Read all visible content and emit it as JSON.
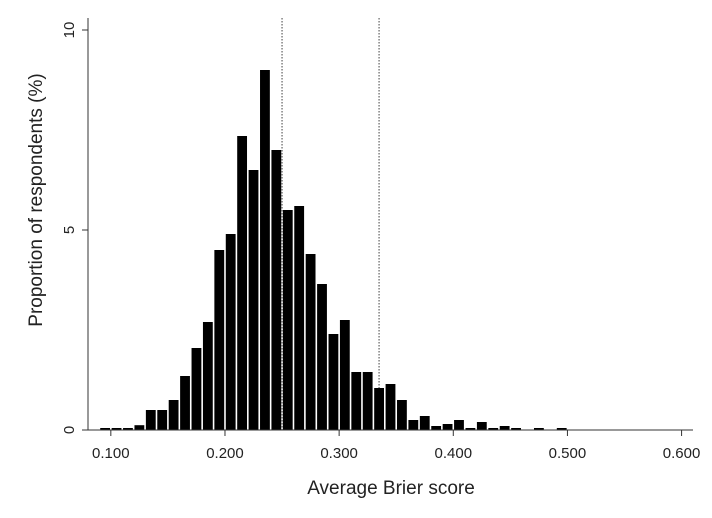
{
  "chart_data": {
    "type": "bar",
    "title": "",
    "xlabel": "Average Brier score",
    "ylabel": "Proportion of respondents (%)",
    "xlim": [
      0.08,
      0.61
    ],
    "ylim": [
      0,
      10
    ],
    "x_ticks": [
      0.1,
      0.2,
      0.3,
      0.4,
      0.5,
      0.6
    ],
    "x_tick_labels": [
      "0.100",
      "0.200",
      "0.300",
      "0.400",
      "0.500",
      "0.600"
    ],
    "y_ticks": [
      0,
      5,
      10
    ],
    "y_tick_labels": [
      "0",
      "5",
      "10"
    ],
    "bin_width": 0.01,
    "grid": false,
    "legend": "none",
    "bar_color": "#000000",
    "reference_lines": [
      0.25,
      0.335
    ],
    "bins": [
      {
        "x": 0.095,
        "value": 0.05
      },
      {
        "x": 0.105,
        "value": 0.05
      },
      {
        "x": 0.115,
        "value": 0.05
      },
      {
        "x": 0.125,
        "value": 0.12
      },
      {
        "x": 0.135,
        "value": 0.5
      },
      {
        "x": 0.145,
        "value": 0.5
      },
      {
        "x": 0.155,
        "value": 0.75
      },
      {
        "x": 0.165,
        "value": 1.35
      },
      {
        "x": 0.175,
        "value": 2.05
      },
      {
        "x": 0.185,
        "value": 2.7
      },
      {
        "x": 0.195,
        "value": 4.5
      },
      {
        "x": 0.205,
        "value": 4.9
      },
      {
        "x": 0.215,
        "value": 7.35
      },
      {
        "x": 0.225,
        "value": 6.5
      },
      {
        "x": 0.235,
        "value": 9.0
      },
      {
        "x": 0.245,
        "value": 7.0
      },
      {
        "x": 0.255,
        "value": 5.5
      },
      {
        "x": 0.265,
        "value": 5.6
      },
      {
        "x": 0.275,
        "value": 4.4
      },
      {
        "x": 0.285,
        "value": 3.65
      },
      {
        "x": 0.295,
        "value": 2.4
      },
      {
        "x": 0.305,
        "value": 2.75
      },
      {
        "x": 0.315,
        "value": 1.45
      },
      {
        "x": 0.325,
        "value": 1.45
      },
      {
        "x": 0.335,
        "value": 1.05
      },
      {
        "x": 0.345,
        "value": 1.15
      },
      {
        "x": 0.355,
        "value": 0.75
      },
      {
        "x": 0.365,
        "value": 0.25
      },
      {
        "x": 0.375,
        "value": 0.35
      },
      {
        "x": 0.385,
        "value": 0.1
      },
      {
        "x": 0.395,
        "value": 0.15
      },
      {
        "x": 0.405,
        "value": 0.25
      },
      {
        "x": 0.415,
        "value": 0.05
      },
      {
        "x": 0.425,
        "value": 0.2
      },
      {
        "x": 0.435,
        "value": 0.05
      },
      {
        "x": 0.445,
        "value": 0.1
      },
      {
        "x": 0.455,
        "value": 0.05
      },
      {
        "x": 0.475,
        "value": 0.05
      },
      {
        "x": 0.495,
        "value": 0.05
      }
    ]
  }
}
